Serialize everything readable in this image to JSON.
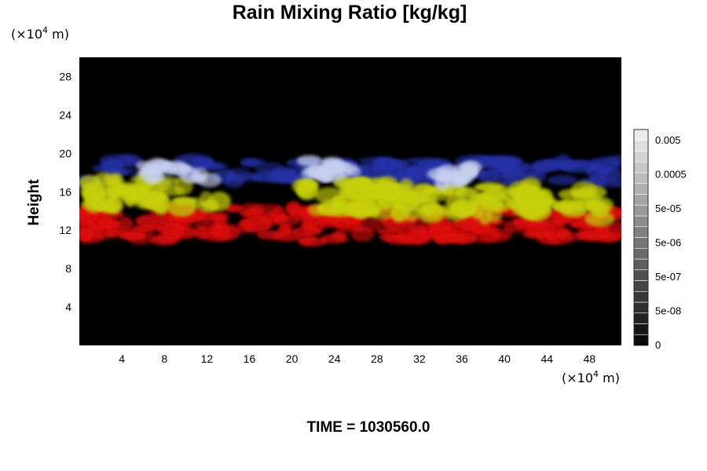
{
  "chart_data": {
    "type": "heatmap",
    "title": "Rain Mixing Ratio [kg/kg]",
    "ylabel": "Height",
    "xunit_prefix": "(×10",
    "xunit_exp": "4",
    "xunit_suffix": " m)",
    "yunit_prefix": "(×10",
    "yunit_exp": "4",
    "yunit_suffix": " m)",
    "xlim": [
      0,
      51
    ],
    "ylim": [
      0,
      30
    ],
    "xticks": [
      4,
      8,
      12,
      16,
      20,
      24,
      28,
      32,
      36,
      40,
      44,
      48
    ],
    "yticks": [
      4,
      8,
      12,
      16,
      20,
      24,
      28
    ],
    "background_color": "#000000",
    "colorbar": {
      "labels": [
        "0",
        "5e-08",
        "5e-07",
        "5e-06",
        "5e-05",
        "0.0005",
        "0.005"
      ],
      "level_count": 20
    },
    "layers": [
      {
        "color": "#dd1010",
        "y_range": [
          10.5,
          14.5
        ]
      },
      {
        "color": "#c8d010",
        "y_range": [
          13.5,
          17.5
        ]
      },
      {
        "color": "#2830a8",
        "y_range": [
          16.5,
          19.5
        ]
      },
      {
        "color": "#c8d0f0",
        "y_range": [
          16.5,
          19.5
        ]
      }
    ],
    "footer": "TIME = 1030560.0"
  }
}
